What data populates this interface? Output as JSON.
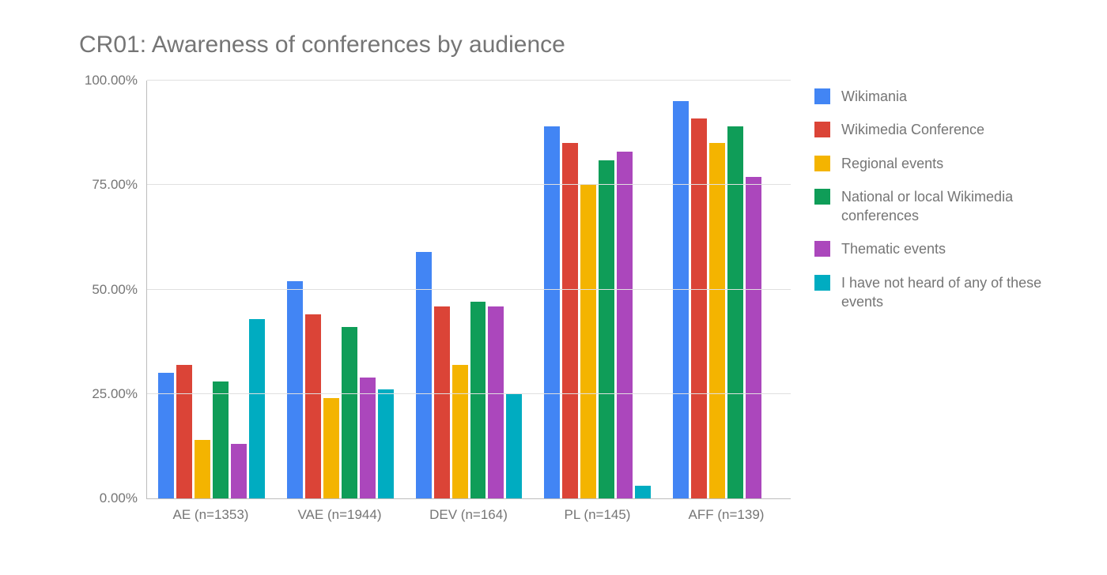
{
  "chart": {
    "type": "bar",
    "title": "CR01: Awareness of conferences by audience",
    "title_fontsize": 30,
    "title_color": "#757575",
    "background_color": "#ffffff",
    "grid_color": "#e0e0e0",
    "axis_color": "#bdbdbd",
    "label_color": "#757575",
    "label_fontsize": 17,
    "legend_fontsize": 18,
    "ylim": [
      0,
      100
    ],
    "ytick_step": 25,
    "yticks": [
      "0.00%",
      "25.00%",
      "50.00%",
      "75.00%",
      "100.00%"
    ],
    "categories": [
      "AE (n=1353)",
      "VAE (n=1944)",
      "DEV (n=164)",
      "PL (n=145)",
      "AFF (n=139)"
    ],
    "series": [
      {
        "label": "Wikimania",
        "color": "#4285f4",
        "values": [
          30,
          52,
          59,
          89,
          95
        ]
      },
      {
        "label": "Wikimedia Conference",
        "color": "#db4437",
        "values": [
          32,
          44,
          46,
          85,
          91
        ]
      },
      {
        "label": "Regional events",
        "color": "#f4b400",
        "values": [
          14,
          24,
          32,
          75,
          85
        ]
      },
      {
        "label": "National or local Wikimedia conferences",
        "color": "#0f9d58",
        "values": [
          28,
          41,
          47,
          81,
          89
        ]
      },
      {
        "label": "Thematic events",
        "color": "#ab47bc",
        "values": [
          13,
          29,
          46,
          83,
          77
        ]
      },
      {
        "label": "I have not heard of any of these events",
        "color": "#00acc1",
        "values": [
          43,
          26,
          25,
          3,
          0
        ]
      }
    ]
  }
}
